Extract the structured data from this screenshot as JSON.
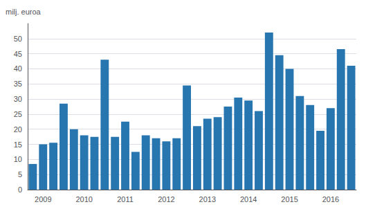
{
  "chart_data": {
    "type": "bar",
    "categories": [
      null,
      "2009",
      null,
      null,
      null,
      "2010",
      null,
      null,
      null,
      "2011",
      null,
      null,
      null,
      "2012",
      null,
      null,
      null,
      "2013",
      null,
      null,
      null,
      "2014",
      null,
      null,
      null,
      "2015",
      null,
      null,
      null,
      "2016",
      null,
      null
    ],
    "values": [
      8.5,
      15.0,
      15.5,
      28.5,
      20.0,
      18.0,
      17.5,
      43.0,
      17.5,
      22.5,
      12.5,
      18.0,
      17.0,
      16.0,
      17.0,
      34.5,
      21.0,
      23.5,
      24.0,
      27.5,
      30.5,
      29.5,
      26.0,
      52.0,
      44.5,
      40.0,
      31.0,
      28.0,
      19.5,
      27.0,
      46.5,
      41.0
    ],
    "y_label": "milj. euroa",
    "color": "#2876b0",
    "ylim": [
      0,
      55
    ],
    "yticks": [
      0,
      5,
      10,
      15,
      20,
      25,
      30,
      35,
      40,
      45,
      50
    ],
    "grid": true
  }
}
